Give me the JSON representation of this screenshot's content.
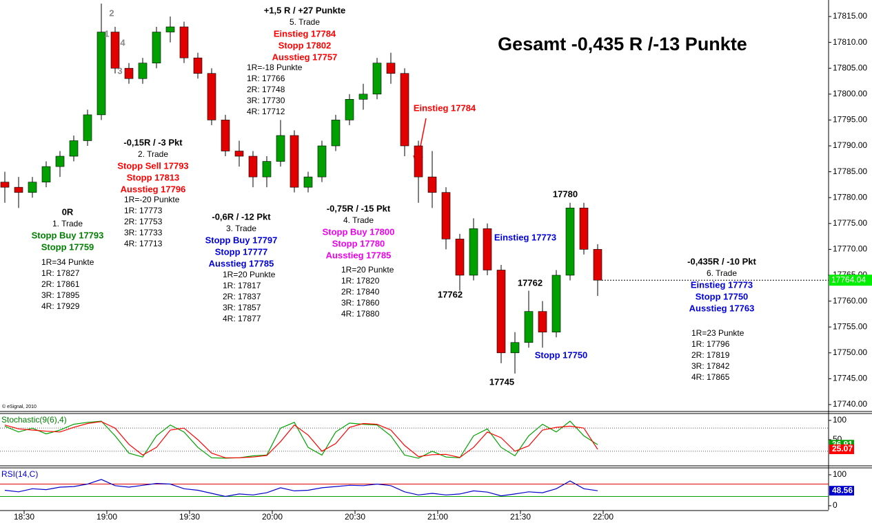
{
  "chart_data": [
    {
      "type": "candlestick",
      "title": "Gesamt -0,435 R /-13 Punkte",
      "source": "© eSignal, 2010",
      "x": [
        1103,
        1108,
        1113,
        1118,
        1123,
        1128,
        1133,
        1138,
        1143,
        1148,
        1153,
        1158,
        1163,
        1168,
        1173,
        1178,
        1183,
        1188,
        1193,
        1198,
        1203,
        1208,
        1213,
        1218,
        1223,
        1228,
        1233,
        1238,
        1243,
        1248,
        1253,
        1258,
        1263,
        1268,
        1273,
        1278,
        1283,
        1288,
        1293,
        1298,
        1303,
        1308,
        1313,
        1318
      ],
      "open": [
        17783,
        17782,
        17781,
        17783,
        17786,
        17788,
        17791,
        17796,
        17812,
        17805,
        17803,
        17806,
        17812,
        17813,
        17807,
        17804,
        17795,
        17789,
        17788,
        17784,
        17787,
        17792,
        17782,
        17784,
        17790,
        17795,
        17799,
        17800,
        17806,
        17804,
        17790,
        17784,
        17781,
        17772,
        17765,
        17774,
        17766,
        17750,
        17752,
        17758,
        17754,
        17765,
        17778,
        17770
      ],
      "high": [
        17785,
        17784,
        17784,
        17787,
        17789,
        17792,
        17797,
        17817.5,
        17813,
        17806,
        17807,
        17813,
        17815,
        17814,
        17808,
        17805,
        17796,
        17791,
        17789,
        17788,
        17795,
        17793,
        17785,
        17791,
        17796,
        17800,
        17802,
        17807,
        17808,
        17805,
        17791,
        17789,
        17782,
        17773,
        17776,
        17775,
        17767,
        17754,
        17762,
        17760,
        17766,
        17779,
        17779,
        17771
      ],
      "low": [
        17779,
        17778,
        17780,
        17782,
        17784,
        17787,
        17790,
        17795,
        17804,
        17802,
        17802,
        17805,
        17810,
        17806,
        17803,
        17794,
        17788,
        17786,
        17782,
        17782,
        17786,
        17781,
        17781,
        17783,
        17789,
        17794,
        17797,
        17799,
        17802,
        17788,
        17779,
        17778,
        17770,
        17762,
        17764,
        17765,
        17748,
        17746,
        17751,
        17751,
        17753,
        17764,
        17769,
        17761
      ],
      "close": [
        17782,
        17781,
        17783,
        17786,
        17788,
        17791,
        17796,
        17812,
        17805,
        17803,
        17806,
        17812,
        17813,
        17807,
        17804,
        17795,
        17789,
        17788,
        17784,
        17787,
        17792,
        17782,
        17784,
        17790,
        17795,
        17799,
        17800,
        17806,
        17804,
        17790,
        17784,
        17781,
        17772,
        17765,
        17774,
        17766,
        17750,
        17752,
        17758,
        17754,
        17765,
        17778,
        17770,
        17764.04
      ],
      "color_up": "#00a000",
      "color_down": "#e00000",
      "last_color": "#00ee00",
      "xlim": [
        1101.25,
        1401.75
      ],
      "xticks": [
        {
          "value": 1110,
          "label": "18:30"
        },
        {
          "value": 1140,
          "label": "19:00"
        },
        {
          "value": 1170,
          "label": "19:30"
        },
        {
          "value": 1200,
          "label": "20:00"
        },
        {
          "value": 1230,
          "label": "20:30"
        },
        {
          "value": 1260,
          "label": "21:00"
        },
        {
          "value": 1290,
          "label": "21:30"
        },
        {
          "value": 1320,
          "label": "22:00"
        }
      ],
      "ylim": [
        17738.67,
        17818.19
      ],
      "yticks": [
        {
          "value": 17740,
          "label": "17740.00"
        },
        {
          "value": 17745,
          "label": "17745.00"
        },
        {
          "value": 17750,
          "label": "17750.00"
        },
        {
          "value": 17755,
          "label": "17755.00"
        },
        {
          "value": 17760,
          "label": "17760.00"
        },
        {
          "value": 17765,
          "label": "17765.00"
        },
        {
          "value": 17770,
          "label": "17770.00"
        },
        {
          "value": 17775,
          "label": "17775.00"
        },
        {
          "value": 17780,
          "label": "17780.00"
        },
        {
          "value": 17785,
          "label": "17785.00"
        },
        {
          "value": 17790,
          "label": "17790.00"
        },
        {
          "value": 17795,
          "label": "17795.00"
        },
        {
          "value": 17800,
          "label": "17800.00"
        },
        {
          "value": 17805,
          "label": "17805.00"
        },
        {
          "value": 17810,
          "label": "17810.00"
        },
        {
          "value": 17815,
          "label": "17815.00"
        }
      ],
      "annotations": {
        "groups": [
          {
            "lines": [
              {
                "text": "0R",
                "color": "#000000"
              },
              {
                "text": "1. Trade",
                "color": "#000000"
              },
              {
                "text": "Stopp Buy 17793",
                "color": "#008000"
              },
              {
                "text": "Stopp  17759",
                "color": "#008000"
              }
            ],
            "details": [
              "1R=34 Punkte",
              "1R: 17827",
              "2R: 17861",
              "3R: 17895",
              "4R: 17929"
            ]
          },
          {
            "lines": [
              {
                "text": "-0,15R / -3 Pkt",
                "color": "#000000"
              },
              {
                "text": "2. Trade",
                "color": "#000000"
              },
              {
                "text": "Stopp Sell 17793",
                "color": "#ff0000"
              },
              {
                "text": "Stopp 17813",
                "color": "#ff0000"
              },
              {
                "text": "Ausstieg 17796",
                "color": "#ff0000"
              }
            ],
            "details": [
              "1R=-20 Punkte",
              "1R: 17773",
              "2R: 17753",
              "3R: 17733",
              "4R: 17713"
            ]
          },
          {
            "lines": [
              {
                "text": "-0,6R / -12 Pkt",
                "color": "#000000"
              },
              {
                "text": "3. Trade",
                "color": "#000000"
              },
              {
                "text": "Stopp Buy 17797",
                "color": "#0000dd"
              },
              {
                "text": "Stopp 17777",
                "color": "#0000dd"
              },
              {
                "text": "Ausstieg 17785",
                "color": "#0000dd"
              }
            ],
            "details": [
              "1R=20 Punkte",
              "1R: 17817",
              "2R: 17837",
              "3R: 17857",
              "4R: 17877"
            ]
          },
          {
            "lines": [
              {
                "text": "-0,75R / -15 Pkt",
                "color": "#000000"
              },
              {
                "text": "4. Trade",
                "color": "#000000"
              },
              {
                "text": "Stopp Buy 17800",
                "color": "#ee00ee"
              },
              {
                "text": "Stopp 17780",
                "color": "#ee00ee"
              },
              {
                "text": "Ausstieg 17785",
                "color": "#ee00ee"
              }
            ],
            "details": [
              "1R=20 Punkte",
              "1R: 17820",
              "2R: 17840",
              "3R: 17860",
              "4R: 17880"
            ]
          },
          {
            "lines": [
              {
                "text": "+1,5 R / +27 Punkte",
                "color": "#000000"
              },
              {
                "text": "5. Trade",
                "color": "#000000"
              },
              {
                "text": "Einstieg 17784",
                "color": "#ff0000"
              },
              {
                "text": "Stopp 17802",
                "color": "#ff0000"
              },
              {
                "text": "Ausstieg 17757",
                "color": "#ff0000"
              }
            ],
            "details": [
              "1R=-18 Punkte",
              "1R: 17766",
              "2R: 17748",
              "3R: 17730",
              "4R: 17712"
            ]
          },
          {
            "lines": [
              {
                "text": "-0,435R / -10 Pkt",
                "color": "#000000"
              },
              {
                "text": "6. Trade",
                "color": "#000000"
              },
              {
                "text": "Einstieg 17773",
                "color": "#0000dd"
              },
              {
                "text": "Stopp 17750",
                "color": "#0000dd"
              },
              {
                "text": "Ausstieg 17763",
                "color": "#0000dd"
              }
            ],
            "details": [
              "1R=23 Punkte",
              "1R: 17796",
              "2R: 17819",
              "3R: 17842",
              "4R: 17865"
            ]
          }
        ],
        "labels": [
          {
            "text": "Einstieg 17784",
            "color": "#ff0000"
          },
          {
            "text": "Einstieg 17773",
            "color": "#0000dd"
          },
          {
            "text": "17762",
            "color": "#000000"
          },
          {
            "text": "17762",
            "color": "#000000"
          },
          {
            "text": "17745",
            "color": "#000000"
          },
          {
            "text": "17780",
            "color": "#000000"
          },
          {
            "text": "Stopp 17750",
            "color": "#0000dd"
          },
          {
            "text": "1",
            "color": "#888888"
          },
          {
            "text": "2",
            "color": "#888888"
          },
          {
            "text": "3",
            "color": "#888888"
          },
          {
            "text": "4",
            "color": "#888888"
          }
        ]
      }
    },
    {
      "type": "line",
      "title": "Stochastic(9(6),4)",
      "title_color": "#008000",
      "ylim": [
        -16.07,
        119.6
      ],
      "yticks": [
        100,
        50
      ],
      "hlines": [
        80,
        20
      ],
      "series": [
        {
          "color": "#00a000",
          "values": [
            85,
            70,
            80,
            65,
            75,
            90,
            95,
            98,
            60,
            15,
            5,
            60,
            88,
            70,
            30,
            3,
            2,
            3,
            8,
            10,
            80,
            95,
            30,
            10,
            70,
            93,
            90,
            88,
            60,
            10,
            2,
            20,
            5,
            3,
            60,
            78,
            30,
            8,
            60,
            90,
            70,
            98,
            60,
            36.91
          ]
        },
        {
          "color": "#ff0000",
          "values": [
            88,
            78,
            75,
            72,
            70,
            82,
            92,
            97,
            80,
            38,
            10,
            30,
            75,
            80,
            50,
            15,
            3,
            3,
            5,
            9,
            45,
            88,
            62,
            20,
            40,
            82,
            92,
            90,
            75,
            35,
            6,
            11,
            12,
            4,
            30,
            70,
            55,
            20,
            34,
            75,
            82,
            85,
            80,
            25.07
          ]
        }
      ]
    },
    {
      "type": "line",
      "title": "RSI(14,C)",
      "title_color": "#0000dd",
      "ylim": [
        -13.3,
        120
      ],
      "yticks": [
        100,
        0
      ],
      "hlines": [
        {
          "value": 70,
          "color": "#dd0000"
        },
        {
          "value": 30,
          "color": "#00a000"
        }
      ],
      "series": [
        {
          "color": "#0000cc",
          "values": [
            50,
            45,
            55,
            52,
            60,
            62,
            70,
            85,
            65,
            60,
            66,
            72,
            70,
            55,
            50,
            40,
            30,
            38,
            35,
            42,
            58,
            48,
            50,
            58,
            62,
            66,
            65,
            70,
            65,
            45,
            35,
            40,
            35,
            38,
            48,
            44,
            32,
            38,
            45,
            42,
            55,
            80,
            55,
            48.56
          ]
        }
      ]
    }
  ]
}
